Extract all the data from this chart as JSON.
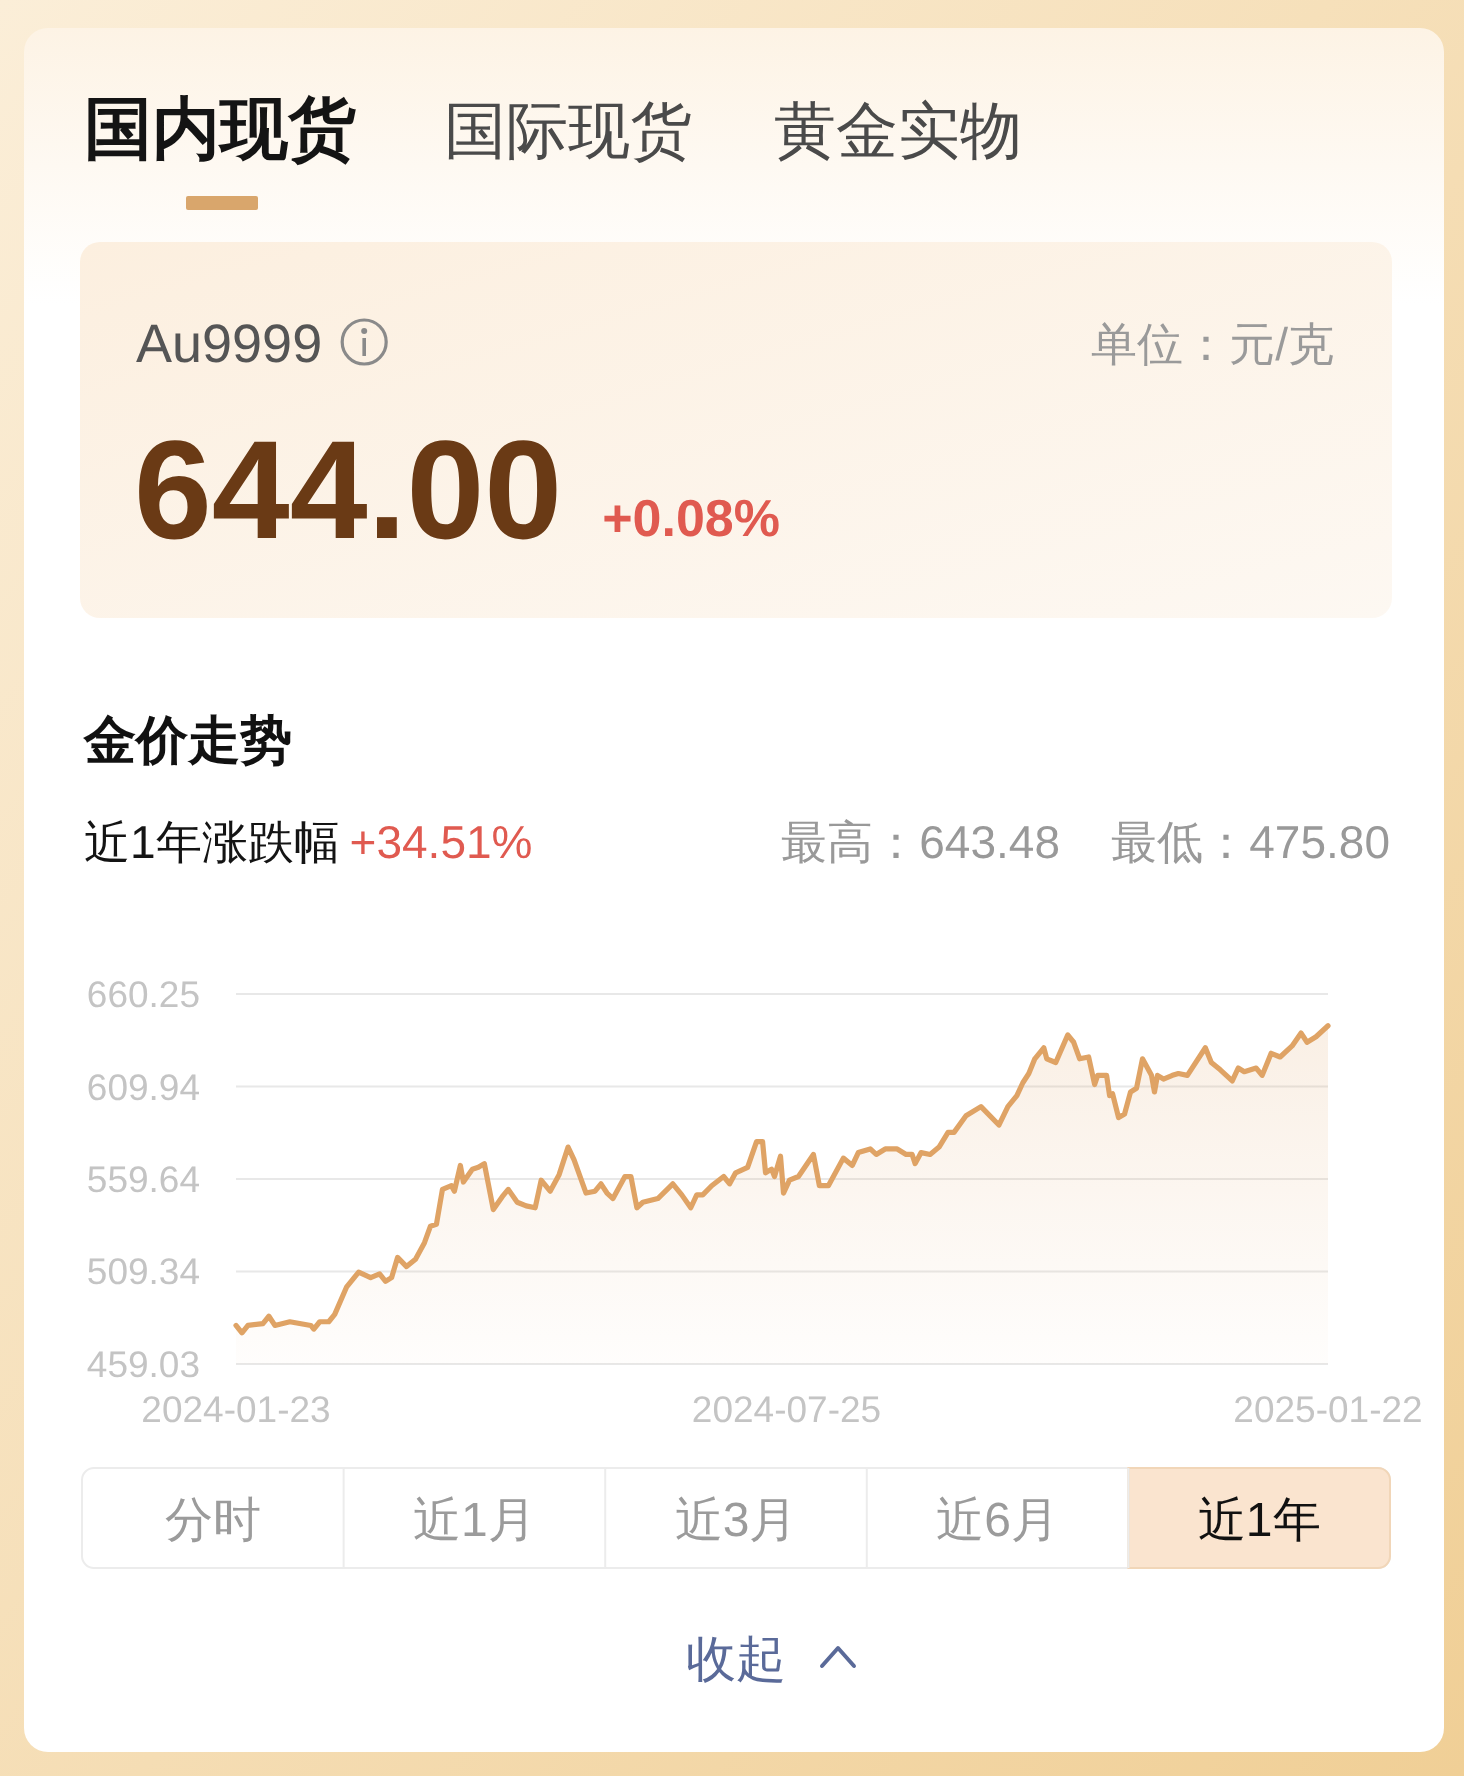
{
  "chart_data": {
    "type": "area",
    "title": "金价走势",
    "annotations": [
      "国内现货",
      "国际现货",
      "黄金实物",
      "Au9999",
      "单位：元/克",
      "644.00",
      "+0.08%",
      "近1年涨跌幅",
      "+34.51%",
      "最高：643.48",
      "最低：475.80",
      "分时",
      "近1月",
      "近3月",
      "近6月",
      "近1年",
      "收起"
    ],
    "x": [
      "2024-01-23",
      "2024-01-25",
      "2024-01-27",
      "2024-02-01",
      "2024-02-03",
      "2024-02-05",
      "2024-02-10",
      "2024-02-17",
      "2024-02-18",
      "2024-02-20",
      "2024-02-23",
      "2024-02-25",
      "2024-02-29",
      "2024-03-04",
      "2024-03-08",
      "2024-03-11",
      "2024-03-13",
      "2024-03-15",
      "2024-03-17",
      "2024-03-20",
      "2024-03-23",
      "2024-03-26",
      "2024-03-28",
      "2024-03-30",
      "2024-04-01",
      "2024-04-04",
      "2024-04-05",
      "2024-04-07",
      "2024-04-08",
      "2024-04-11",
      "2024-04-13",
      "2024-04-15",
      "2024-04-18",
      "2024-04-21",
      "2024-04-23",
      "2024-04-26",
      "2024-04-29",
      "2024-05-02",
      "2024-05-04",
      "2024-05-07",
      "2024-05-10",
      "2024-05-13",
      "2024-05-15",
      "2024-05-19",
      "2024-05-22",
      "2024-05-24",
      "2024-05-26",
      "2024-05-28",
      "2024-05-30",
      "2024-06-01",
      "2024-06-03",
      "2024-06-05",
      "2024-06-07",
      "2024-06-12",
      "2024-06-17",
      "2024-06-20",
      "2024-06-23",
      "2024-06-25",
      "2024-06-27",
      "2024-06-30",
      "2024-07-04",
      "2024-07-06",
      "2024-07-08",
      "2024-07-12",
      "2024-07-15",
      "2024-07-17",
      "2024-07-18",
      "2024-07-20",
      "2024-07-21",
      "2024-07-23",
      "2024-07-24",
      "2024-07-26",
      "2024-07-29",
      "2024-08-03",
      "2024-08-05",
      "2024-08-08",
      "2024-08-13",
      "2024-08-16",
      "2024-08-18",
      "2024-08-22",
      "2024-08-24",
      "2024-08-27",
      "2024-08-31",
      "2024-09-03",
      "2024-09-05",
      "2024-09-06",
      "2024-09-08",
      "2024-09-11",
      "2024-09-14",
      "2024-09-17",
      "2024-09-19",
      "2024-09-23",
      "2024-09-28",
      "2024-10-04",
      "2024-10-07",
      "2024-10-10",
      "2024-10-12",
      "2024-10-14",
      "2024-10-16",
      "2024-10-19",
      "2024-10-20",
      "2024-10-23",
      "2024-10-27",
      "2024-10-29",
      "2024-10-31",
      "2024-11-03",
      "2024-11-05",
      "2024-11-06",
      "2024-11-09",
      "2024-11-10",
      "2024-11-11",
      "2024-11-13",
      "2024-11-15",
      "2024-11-17",
      "2024-11-19",
      "2024-11-21",
      "2024-11-24",
      "2024-11-25",
      "2024-11-26",
      "2024-11-28",
      "2024-12-01",
      "2024-12-03",
      "2024-12-06",
      "2024-12-12",
      "2024-12-14",
      "2024-12-17",
      "2024-12-21",
      "2024-12-23",
      "2024-12-25",
      "2024-12-29",
      "2024-12-31",
      "2025-01-03",
      "2025-01-06",
      "2025-01-10",
      "2025-01-13",
      "2025-01-15",
      "2025-01-18",
      "2025-01-20",
      "2025-01-22"
    ],
    "series": [
      {
        "color": "#dfa365",
        "values": [
          480,
          476,
          480,
          481,
          485,
          480,
          482,
          480,
          478,
          482,
          482,
          486,
          501,
          509,
          506,
          508,
          504,
          506,
          517,
          512,
          516,
          525,
          534,
          535,
          554,
          556,
          553,
          567,
          558,
          565,
          566,
          568,
          543,
          550,
          554,
          547,
          545,
          544,
          559,
          553,
          562,
          577,
          570,
          552,
          553,
          557,
          552,
          549,
          555,
          561,
          561,
          544,
          547,
          549,
          557,
          551,
          544,
          551,
          551,
          556,
          561,
          557,
          563,
          566,
          580,
          580,
          563,
          565,
          561,
          572,
          552,
          559,
          561,
          573,
          556,
          556,
          571,
          567,
          574,
          576,
          573,
          576,
          576,
          573,
          573,
          568,
          574,
          573,
          577,
          585,
          585,
          594,
          599,
          589,
          599,
          605,
          612,
          617,
          625,
          631,
          625,
          623,
          638,
          634,
          625,
          626,
          611,
          616,
          616,
          605,
          606,
          593,
          595,
          607,
          609,
          625,
          616,
          607,
          616,
          614,
          616,
          617,
          616,
          631,
          623,
          619,
          613,
          620,
          618,
          620,
          616,
          628,
          626,
          632,
          639,
          634,
          637,
          640,
          643
        ]
      }
    ],
    "xlim": [
      "2024-01-23",
      "2025-01-22"
    ],
    "xticks": [
      "2024-01-23",
      "2024-07-25",
      "2025-01-22"
    ],
    "ylim": [
      459.03,
      660.25
    ],
    "yticks": [
      459.03,
      509.34,
      559.64,
      609.94,
      660.25
    ],
    "grid": "y"
  }
}
